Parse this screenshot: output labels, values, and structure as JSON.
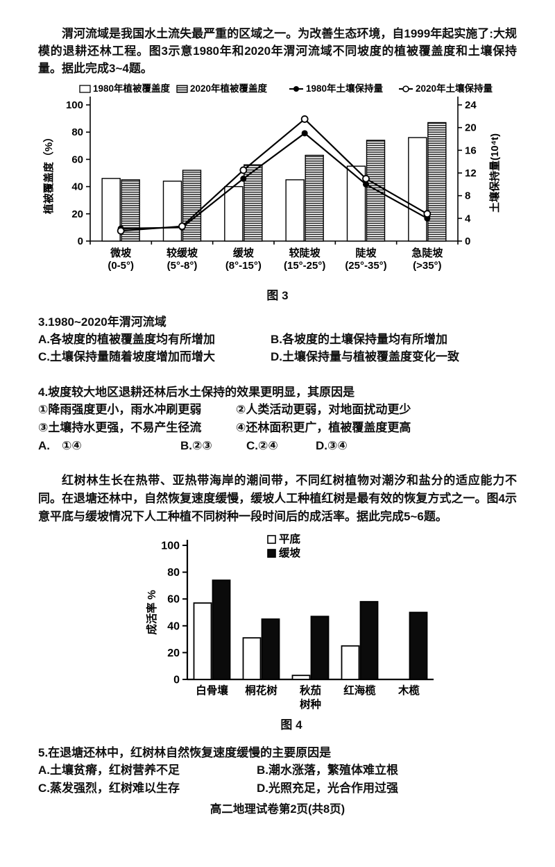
{
  "texts": {
    "intro1": "渭河流域是我国水土流失最严重的区域之一。为改善生态环境，自1999年起实施了:大规模的退耕还林工程。图3示意1980年和2020年渭河流域不同坡度的植被覆盖度和土壤保持量。据此完成3~4题。",
    "intro2": "红树林生长在热带、亚热带海岸的潮间带，不同红树植物对潮汐和盐分的适应能力不同。在退塘还林中，自然恢复速度缓慢，缓坡人工种植红树是最有效的恢复方式之一。图4示意平底与缓坡情况下人工种植不同树种一段时间后的成活率。据此完成5~6题。"
  },
  "questions": {
    "q3": {
      "stem": "3.1980~2020年渭河流域",
      "options": [
        "A.各坡度的植被覆盖度均有所增加",
        "B.各坡度的土壤保持量均有所增加",
        "C.土壤保持量随着坡度增加而增大",
        "D.土壤保持量与植被覆盖度变化一致"
      ]
    },
    "q4": {
      "stem": "4.坡度较大地区退耕还林后水土保持的效果更明显，其原因是",
      "items": [
        "①降雨强度更小，雨水冲刷更弱",
        "②人类活动更弱，对地面扰动更少",
        "③土壤持水更强，不易产生径流",
        "④还林面积更广，植被覆盖度更高"
      ],
      "options": [
        "A.　①④",
        "B.②③",
        "C.②④",
        "D.③④"
      ]
    },
    "q5": {
      "stem": "5.在退塘还林中，红树林自然恢复速度缓慢的主要原因是",
      "options": [
        "A.土壤贫瘠，红树营养不足",
        "B.潮水涨落，繁殖体难立根",
        "C.蒸发强烈，红树难以生存",
        "D.光照充足，光合作用过强"
      ]
    }
  },
  "footer": "高二地理试卷第2页(共8页)",
  "chart_data": [
    {
      "type": "bar",
      "caption": "图 3",
      "categories": [
        "微坡",
        "较缓坡",
        "缓坡",
        "较陡坡",
        "陡坡",
        "急陡坡"
      ],
      "category_sub": [
        "(0-5°)",
        "(5°-8°)",
        "(8°-15°)",
        "(15°-25°)",
        "(25°-35°)",
        "(>35°)"
      ],
      "left_axis": {
        "label": "植被覆盖度（%）",
        "min": 0,
        "max": 100,
        "step": 20
      },
      "right_axis": {
        "label": "土壤保持量(10⁴t)",
        "min": 0,
        "max": 24,
        "step": 4
      },
      "legend_position": "top",
      "grid": false,
      "series": [
        {
          "name": "1980年植被覆盖度",
          "kind": "bar",
          "style": "white",
          "axis": "left",
          "values": [
            46,
            44,
            40,
            45,
            55,
            76
          ]
        },
        {
          "name": "2020年植被覆盖度",
          "kind": "bar",
          "style": "hatch",
          "axis": "left",
          "values": [
            45,
            52,
            56,
            63,
            74,
            87
          ]
        },
        {
          "name": "1980年土壤保持量",
          "kind": "line",
          "marker": "filled",
          "axis": "right",
          "values": [
            2.2,
            2.4,
            11,
            19,
            10,
            4
          ]
        },
        {
          "name": "2020年土壤保持量",
          "kind": "line",
          "marker": "open",
          "axis": "right",
          "values": [
            1.8,
            2.6,
            12.5,
            21.5,
            11,
            4.8
          ]
        }
      ]
    },
    {
      "type": "bar",
      "caption": "图 4",
      "categories": [
        "白骨壤",
        "桐花树",
        "秋茄",
        "红海榄",
        "木榄"
      ],
      "xlabel": "树种",
      "yaxis": {
        "label": "成活率 %",
        "min": 0,
        "max": 100,
        "step": 20
      },
      "legend_position": "top-inside",
      "grid": false,
      "series": [
        {
          "name": "平底",
          "style": "white",
          "values": [
            57,
            31,
            3,
            25,
            0
          ]
        },
        {
          "name": "缓坡",
          "style": "black",
          "values": [
            74,
            45,
            47,
            58,
            50
          ]
        }
      ]
    }
  ]
}
